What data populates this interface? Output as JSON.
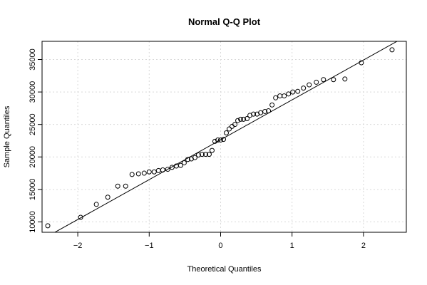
{
  "chart_data": {
    "type": "scatter",
    "title": "Normal Q-Q Plot",
    "xlabel": "Theoretical Quantiles",
    "ylabel": "Sample Quantiles",
    "xlim": [
      -2.5,
      2.6
    ],
    "ylim": [
      8400,
      37800
    ],
    "x_ticks": [
      -2,
      -1,
      0,
      1,
      2
    ],
    "x_tick_labels": [
      "−2",
      "−1",
      "0",
      "1",
      "2"
    ],
    "y_ticks": [
      10000,
      15000,
      20000,
      25000,
      30000,
      35000
    ],
    "y_tick_labels": [
      "10000",
      "15000",
      "20000",
      "25000",
      "30000",
      "35000"
    ],
    "grid": true,
    "reference_line": {
      "type": "qqline",
      "color": "#000000",
      "points": [
        [
          -2.5,
          7300
        ],
        [
          2.6,
          38600
        ]
      ]
    },
    "series": [
      {
        "marker": "open-circle",
        "color": "#000000",
        "points": [
          [
            -2.42,
            9400
          ],
          [
            -1.96,
            10700
          ],
          [
            -1.74,
            12700
          ],
          [
            -1.58,
            13800
          ],
          [
            -1.44,
            15500
          ],
          [
            -1.33,
            15500
          ],
          [
            -1.24,
            17300
          ],
          [
            -1.15,
            17400
          ],
          [
            -1.07,
            17500
          ],
          [
            -1.0,
            17700
          ],
          [
            -0.93,
            17700
          ],
          [
            -0.87,
            17900
          ],
          [
            -0.81,
            18000
          ],
          [
            -0.74,
            18100
          ],
          [
            -0.68,
            18400
          ],
          [
            -0.62,
            18600
          ],
          [
            -0.56,
            18700
          ],
          [
            -0.51,
            19100
          ],
          [
            -0.46,
            19600
          ],
          [
            -0.41,
            19700
          ],
          [
            -0.36,
            19900
          ],
          [
            -0.31,
            20300
          ],
          [
            -0.26,
            20400
          ],
          [
            -0.21,
            20400
          ],
          [
            -0.16,
            20400
          ],
          [
            -0.12,
            21000
          ],
          [
            -0.08,
            22400
          ],
          [
            -0.04,
            22600
          ],
          [
            0.0,
            22600
          ],
          [
            0.04,
            22700
          ],
          [
            0.08,
            23700
          ],
          [
            0.12,
            24300
          ],
          [
            0.16,
            24700
          ],
          [
            0.2,
            25000
          ],
          [
            0.24,
            25600
          ],
          [
            0.28,
            25800
          ],
          [
            0.32,
            25800
          ],
          [
            0.37,
            25900
          ],
          [
            0.41,
            26400
          ],
          [
            0.46,
            26600
          ],
          [
            0.51,
            26600
          ],
          [
            0.56,
            26800
          ],
          [
            0.62,
            27000
          ],
          [
            0.67,
            27100
          ],
          [
            0.72,
            28000
          ],
          [
            0.77,
            29100
          ],
          [
            0.83,
            29400
          ],
          [
            0.89,
            29400
          ],
          [
            0.95,
            29700
          ],
          [
            1.01,
            30000
          ],
          [
            1.08,
            30100
          ],
          [
            1.16,
            30600
          ],
          [
            1.24,
            31100
          ],
          [
            1.34,
            31500
          ],
          [
            1.44,
            31900
          ],
          [
            1.58,
            31900
          ],
          [
            1.74,
            32000
          ],
          [
            1.97,
            34500
          ],
          [
            2.4,
            36500
          ]
        ]
      }
    ]
  }
}
